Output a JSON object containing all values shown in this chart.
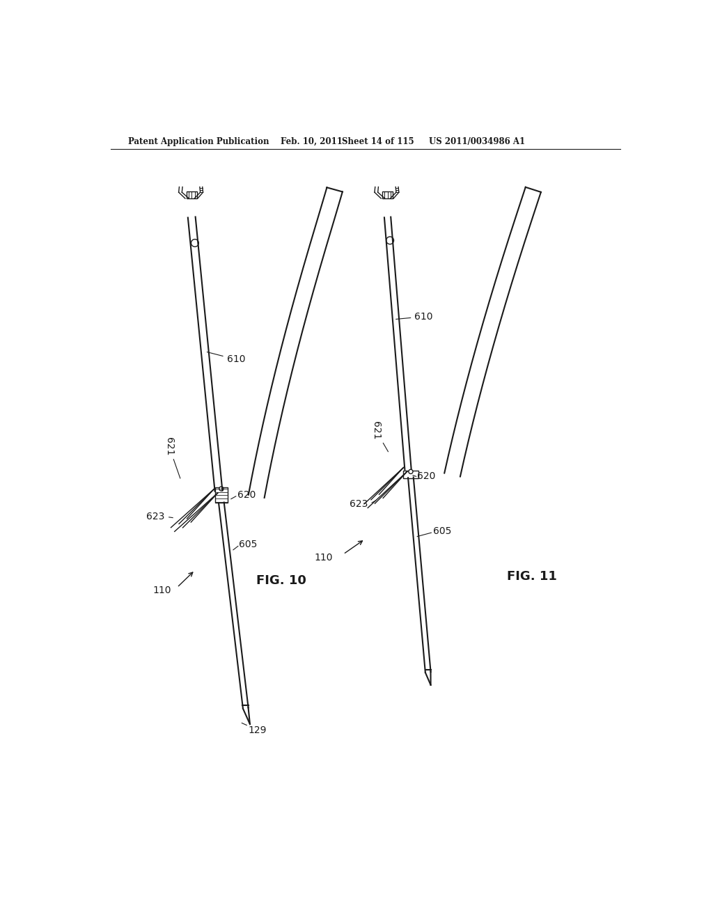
{
  "bg_color": "#ffffff",
  "header_text": "Patent Application Publication",
  "header_date": "Feb. 10, 2011",
  "header_sheet": "Sheet 14 of 115",
  "header_patent": "US 2011/0034986 A1",
  "fig10_label": "FIG. 10",
  "fig11_label": "FIG. 11",
  "line_color": "#1a1a1a",
  "lw_main": 1.5,
  "lw_thin": 1.0,
  "lw_thick": 2.0
}
